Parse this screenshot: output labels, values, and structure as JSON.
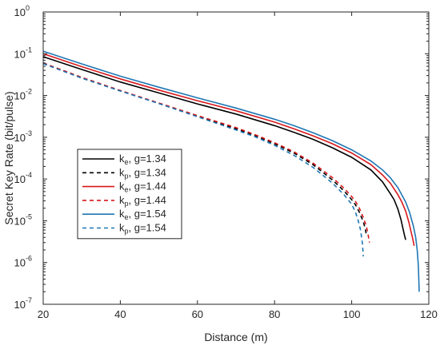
{
  "chart_data": {
    "type": "line",
    "title": "",
    "xlabel": "Distance (m)",
    "ylabel": "Secret Key Rate (bit/pulse)",
    "xlim": [
      20,
      120
    ],
    "ylim": [
      1e-07,
      1
    ],
    "yscale": "log",
    "grid": false,
    "legend_position": "center-left",
    "xticks": [
      20,
      40,
      60,
      80,
      100,
      120
    ],
    "xtick_labels": [
      "20",
      "40",
      "60",
      "80",
      "100",
      "120"
    ],
    "yticks": [
      1e-07,
      1e-06,
      1e-05,
      0.0001,
      0.001,
      0.01,
      0.1,
      1
    ],
    "ytick_labels": [
      {
        "base": "10",
        "exp": "-7"
      },
      {
        "base": "10",
        "exp": "-6"
      },
      {
        "base": "10",
        "exp": "-5"
      },
      {
        "base": "10",
        "exp": "-4"
      },
      {
        "base": "10",
        "exp": "-3"
      },
      {
        "base": "10",
        "exp": "-2"
      },
      {
        "base": "10",
        "exp": "-1"
      },
      {
        "base": "10",
        "exp": "0"
      }
    ],
    "series": [
      {
        "name": "ke, g=1.34",
        "legend": {
          "k": "k",
          "sub": "e",
          "rest": ", g=1.34"
        },
        "color": "#000000",
        "style": "solid",
        "x": [
          20,
          30,
          40,
          50,
          60,
          70,
          80,
          85,
          90,
          95,
          100,
          105,
          108,
          110,
          111,
          112,
          112.8,
          113.3,
          113.7,
          114
        ],
        "y": [
          0.085,
          0.042,
          0.021,
          0.0115,
          0.0063,
          0.0036,
          0.0019,
          0.00132,
          0.00089,
          0.00056,
          0.00033,
          0.000165,
          8.5e-05,
          4.5e-05,
          3.2e-05,
          1.9e-05,
          1.05e-05,
          6.5e-06,
          4.5e-06,
          3.5e-06
        ]
      },
      {
        "name": "kp, g=1.34",
        "legend": {
          "k": "k",
          "sub": "p",
          "rest": ", g=1.34"
        },
        "color": "#000000",
        "style": "dashed",
        "x": [
          20,
          30,
          40,
          50,
          60,
          70,
          75,
          80,
          85,
          90,
          95,
          98,
          100,
          101,
          102,
          103,
          103.5,
          103.9
        ],
        "y": [
          0.06,
          0.027,
          0.013,
          0.0065,
          0.0032,
          0.0016,
          0.0011,
          0.0007,
          0.00042,
          0.00022,
          9.5e-05,
          5.2e-05,
          3.2e-05,
          2.4e-05,
          1.6e-05,
          9.5e-06,
          6.5e-06,
          4.2e-06
        ]
      },
      {
        "name": "ke, g=1.44",
        "legend": {
          "k": "k",
          "sub": "e",
          "rest": ", g=1.44"
        },
        "color": "#d7191c",
        "style": "solid",
        "x": [
          20,
          30,
          40,
          50,
          60,
          70,
          80,
          85,
          90,
          95,
          100,
          105,
          108,
          110,
          112,
          113,
          114,
          114.8,
          115.4,
          115.8,
          116.2
        ],
        "y": [
          0.1,
          0.049,
          0.025,
          0.0135,
          0.0075,
          0.0043,
          0.0023,
          0.0016,
          0.00108,
          0.0007,
          0.00042,
          0.00022,
          0.000125,
          8e-05,
          4.2e-05,
          2.8e-05,
          1.7e-05,
          9.5e-06,
          5.5e-06,
          3.8e-06,
          2.5e-06
        ]
      },
      {
        "name": "kp, g=1.44",
        "legend": {
          "k": "k",
          "sub": "p",
          "rest": ", g=1.44"
        },
        "color": "#d7191c",
        "style": "dashed",
        "x": [
          20,
          30,
          40,
          50,
          60,
          70,
          75,
          80,
          85,
          90,
          95,
          98,
          100,
          101,
          102,
          103,
          103.8,
          104.3,
          104.6
        ],
        "y": [
          0.06,
          0.027,
          0.0132,
          0.0066,
          0.0033,
          0.0017,
          0.00115,
          0.00074,
          0.00045,
          0.00024,
          0.000108,
          6e-05,
          3.8e-05,
          2.9e-05,
          2e-05,
          1.2e-05,
          7.5e-06,
          4.5e-06,
          3e-06
        ]
      },
      {
        "name": "ke, g=1.54",
        "legend": {
          "k": "k",
          "sub": "e",
          "rest": ", g=1.54"
        },
        "color": "#1f77b4",
        "style": "solid",
        "x": [
          20,
          30,
          40,
          50,
          60,
          70,
          80,
          85,
          90,
          95,
          100,
          105,
          108,
          110,
          112,
          114,
          115,
          116,
          116.6,
          117,
          117.3,
          117.5
        ],
        "y": [
          0.115,
          0.057,
          0.029,
          0.0158,
          0.0088,
          0.005,
          0.0027,
          0.0019,
          0.00128,
          0.00083,
          0.0005,
          0.00027,
          0.000165,
          0.000108,
          6.2e-05,
          2.8e-05,
          1.6e-05,
          7.5e-06,
          4e-06,
          2e-06,
          8e-07,
          2e-07
        ]
      },
      {
        "name": "kp, g=1.54",
        "legend": {
          "k": "k",
          "sub": "p",
          "rest": ", g=1.54"
        },
        "color": "#1f77b4",
        "style": "dashed",
        "x": [
          20,
          30,
          40,
          50,
          60,
          70,
          75,
          80,
          85,
          90,
          95,
          98,
          100,
          101,
          101.7,
          102.3,
          102.8,
          103
        ],
        "y": [
          0.058,
          0.026,
          0.0128,
          0.0064,
          0.0031,
          0.0015,
          0.00102,
          0.00064,
          0.00037,
          0.00019,
          8e-05,
          4.2e-05,
          2.5e-05,
          1.6e-05,
          1e-05,
          6e-06,
          2.8e-06,
          1.4e-06
        ]
      }
    ]
  }
}
